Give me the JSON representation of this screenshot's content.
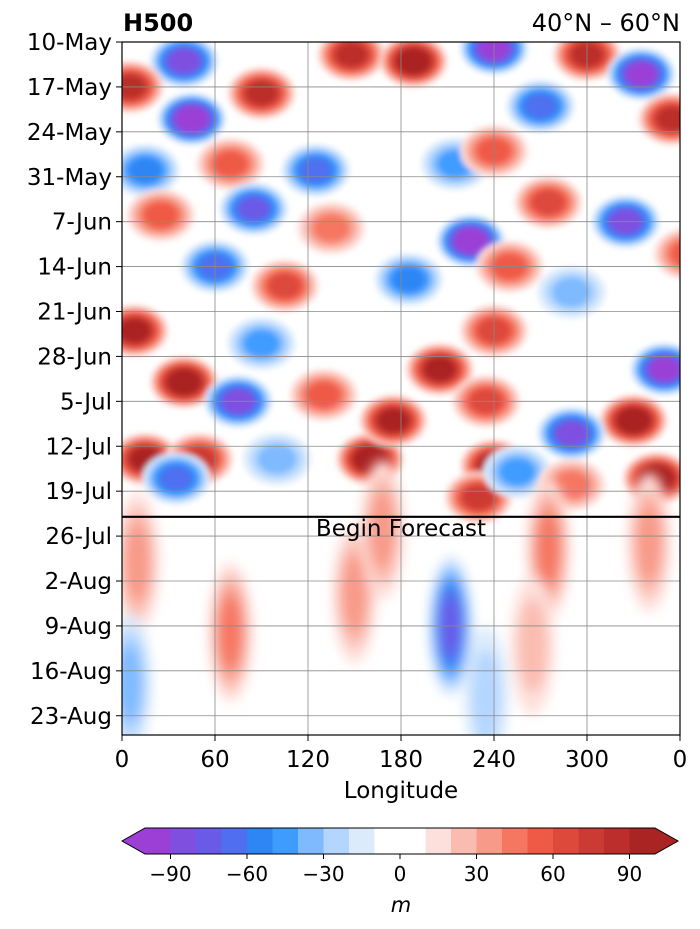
{
  "chart_data": {
    "type": "heatmap",
    "title": "H500",
    "subtitle": "40°N – 60°N",
    "xlabel": "Longitude",
    "ylabel": "",
    "x_ticks": [
      "0",
      "60",
      "120",
      "180",
      "240",
      "300",
      "0"
    ],
    "x_tick_values": [
      0,
      60,
      120,
      180,
      240,
      300,
      360
    ],
    "xlim": [
      0,
      360
    ],
    "y_ticks": [
      "10-May",
      "17-May",
      "24-May",
      "31-May",
      "7-Jun",
      "14-Jun",
      "21-Jun",
      "28-Jun",
      "5-Jul",
      "12-Jul",
      "19-Jul",
      "26-Jul",
      "2-Aug",
      "9-Aug",
      "16-Aug",
      "23-Aug"
    ],
    "y_range_dates": [
      "10-May",
      "26-Aug"
    ],
    "forecast_line_date": "23-Jul",
    "annotation": "Begin Forecast",
    "grid": true,
    "colorbar": {
      "label": "m",
      "tick_labels": [
        "−90",
        "−60",
        "−30",
        "0",
        "30",
        "60",
        "90"
      ],
      "tick_values": [
        -90,
        -60,
        -30,
        0,
        30,
        60,
        90
      ],
      "levels": [
        -100,
        -90,
        -80,
        -70,
        -60,
        -50,
        -40,
        -30,
        -20,
        -10,
        10,
        20,
        30,
        40,
        50,
        60,
        70,
        80,
        90,
        100
      ],
      "colors": [
        "#9b3fd6",
        "#7f4fe0",
        "#6a5ae8",
        "#4f6ff0",
        "#2e86f5",
        "#3f9cff",
        "#7fbaff",
        "#b3d6ff",
        "#dcebfb",
        "#ffffff",
        "#fde0dc",
        "#fbbcb0",
        "#f89a88",
        "#f57762",
        "#ef5a46",
        "#dd4a3c",
        "#cc3b33",
        "#bb2e2b",
        "#aa2424"
      ],
      "extend": "both"
    },
    "anomaly_centers": [
      {
        "lon": 45,
        "date": "22-May",
        "value": -95
      },
      {
        "lon": 40,
        "date": "13-May",
        "value": -75
      },
      {
        "lon": 90,
        "date": "18-May",
        "value": 75
      },
      {
        "lon": 148,
        "date": "12-May",
        "value": 80
      },
      {
        "lon": 188,
        "date": "13-May",
        "value": 100
      },
      {
        "lon": 240,
        "date": "11-May",
        "value": -90
      },
      {
        "lon": 270,
        "date": "20-May",
        "value": -60
      },
      {
        "lon": 300,
        "date": "12-May",
        "value": 75
      },
      {
        "lon": 335,
        "date": "15-May",
        "value": -85
      },
      {
        "lon": 355,
        "date": "22-May",
        "value": 75
      },
      {
        "lon": 5,
        "date": "17-May",
        "value": 80
      },
      {
        "lon": 15,
        "date": "30-May",
        "value": -45
      },
      {
        "lon": 70,
        "date": "29-May",
        "value": 50
      },
      {
        "lon": 125,
        "date": "30-May",
        "value": -60
      },
      {
        "lon": 215,
        "date": "29-May",
        "value": -40
      },
      {
        "lon": 240,
        "date": "27-May",
        "value": 45
      },
      {
        "lon": 25,
        "date": "6-Jun",
        "value": 45
      },
      {
        "lon": 85,
        "date": "5-Jun",
        "value": -65
      },
      {
        "lon": 135,
        "date": "8-Jun",
        "value": 40
      },
      {
        "lon": 225,
        "date": "10-Jun",
        "value": -95
      },
      {
        "lon": 275,
        "date": "4-Jun",
        "value": 55
      },
      {
        "lon": 325,
        "date": "7-Jun",
        "value": -80
      },
      {
        "lon": 60,
        "date": "14-Jun",
        "value": -55
      },
      {
        "lon": 105,
        "date": "17-Jun",
        "value": 55
      },
      {
        "lon": 185,
        "date": "16-Jun",
        "value": -50
      },
      {
        "lon": 250,
        "date": "14-Jun",
        "value": 45
      },
      {
        "lon": 365,
        "date": "12-Jun",
        "value": 45
      },
      {
        "lon": 8,
        "date": "24-Jun",
        "value": 85
      },
      {
        "lon": 40,
        "date": "2-Jul",
        "value": 95
      },
      {
        "lon": 90,
        "date": "26-Jun",
        "value": -35
      },
      {
        "lon": 240,
        "date": "24-Jun",
        "value": 60
      },
      {
        "lon": 290,
        "date": "18-Jun",
        "value": -30
      },
      {
        "lon": 350,
        "date": "30-Jun",
        "value": -85
      },
      {
        "lon": 330,
        "date": "8-Jul",
        "value": 95
      },
      {
        "lon": 75,
        "date": "5-Jul",
        "value": -80
      },
      {
        "lon": 130,
        "date": "4-Jul",
        "value": 50
      },
      {
        "lon": 205,
        "date": "30-Jun",
        "value": 90
      },
      {
        "lon": 235,
        "date": "5-Jul",
        "value": 60
      },
      {
        "lon": 290,
        "date": "10-Jul",
        "value": -75
      },
      {
        "lon": 345,
        "date": "17-Jul",
        "value": 95
      },
      {
        "lon": 15,
        "date": "14-Jul",
        "value": 90
      },
      {
        "lon": 50,
        "date": "14-Jul",
        "value": 65
      },
      {
        "lon": 35,
        "date": "17-Jul",
        "value": -60
      },
      {
        "lon": 100,
        "date": "14-Jul",
        "value": -25
      },
      {
        "lon": 160,
        "date": "14-Jul",
        "value": 95
      },
      {
        "lon": 175,
        "date": "8-Jul",
        "value": 85
      },
      {
        "lon": 240,
        "date": "15-Jul",
        "value": 90
      },
      {
        "lon": 230,
        "date": "20-Jul",
        "value": 70
      },
      {
        "lon": 255,
        "date": "16-Jul",
        "value": -40
      },
      {
        "lon": 290,
        "date": "18-Jul",
        "value": 40
      },
      {
        "lon": 10,
        "date": "30-Jul",
        "value": 30
      },
      {
        "lon": 5,
        "date": "18-Aug",
        "value": -30
      },
      {
        "lon": 70,
        "date": "10-Aug",
        "value": 35
      },
      {
        "lon": 150,
        "date": "4-Aug",
        "value": 30
      },
      {
        "lon": 168,
        "date": "25-Jul",
        "value": 25
      },
      {
        "lon": 212,
        "date": "9-Aug",
        "value": -70
      },
      {
        "lon": 275,
        "date": "28-Jul",
        "value": 40
      },
      {
        "lon": 265,
        "date": "12-Aug",
        "value": 15
      },
      {
        "lon": 340,
        "date": "27-Jul",
        "value": 30
      },
      {
        "lon": 235,
        "date": "20-Aug",
        "value": -15
      }
    ]
  }
}
